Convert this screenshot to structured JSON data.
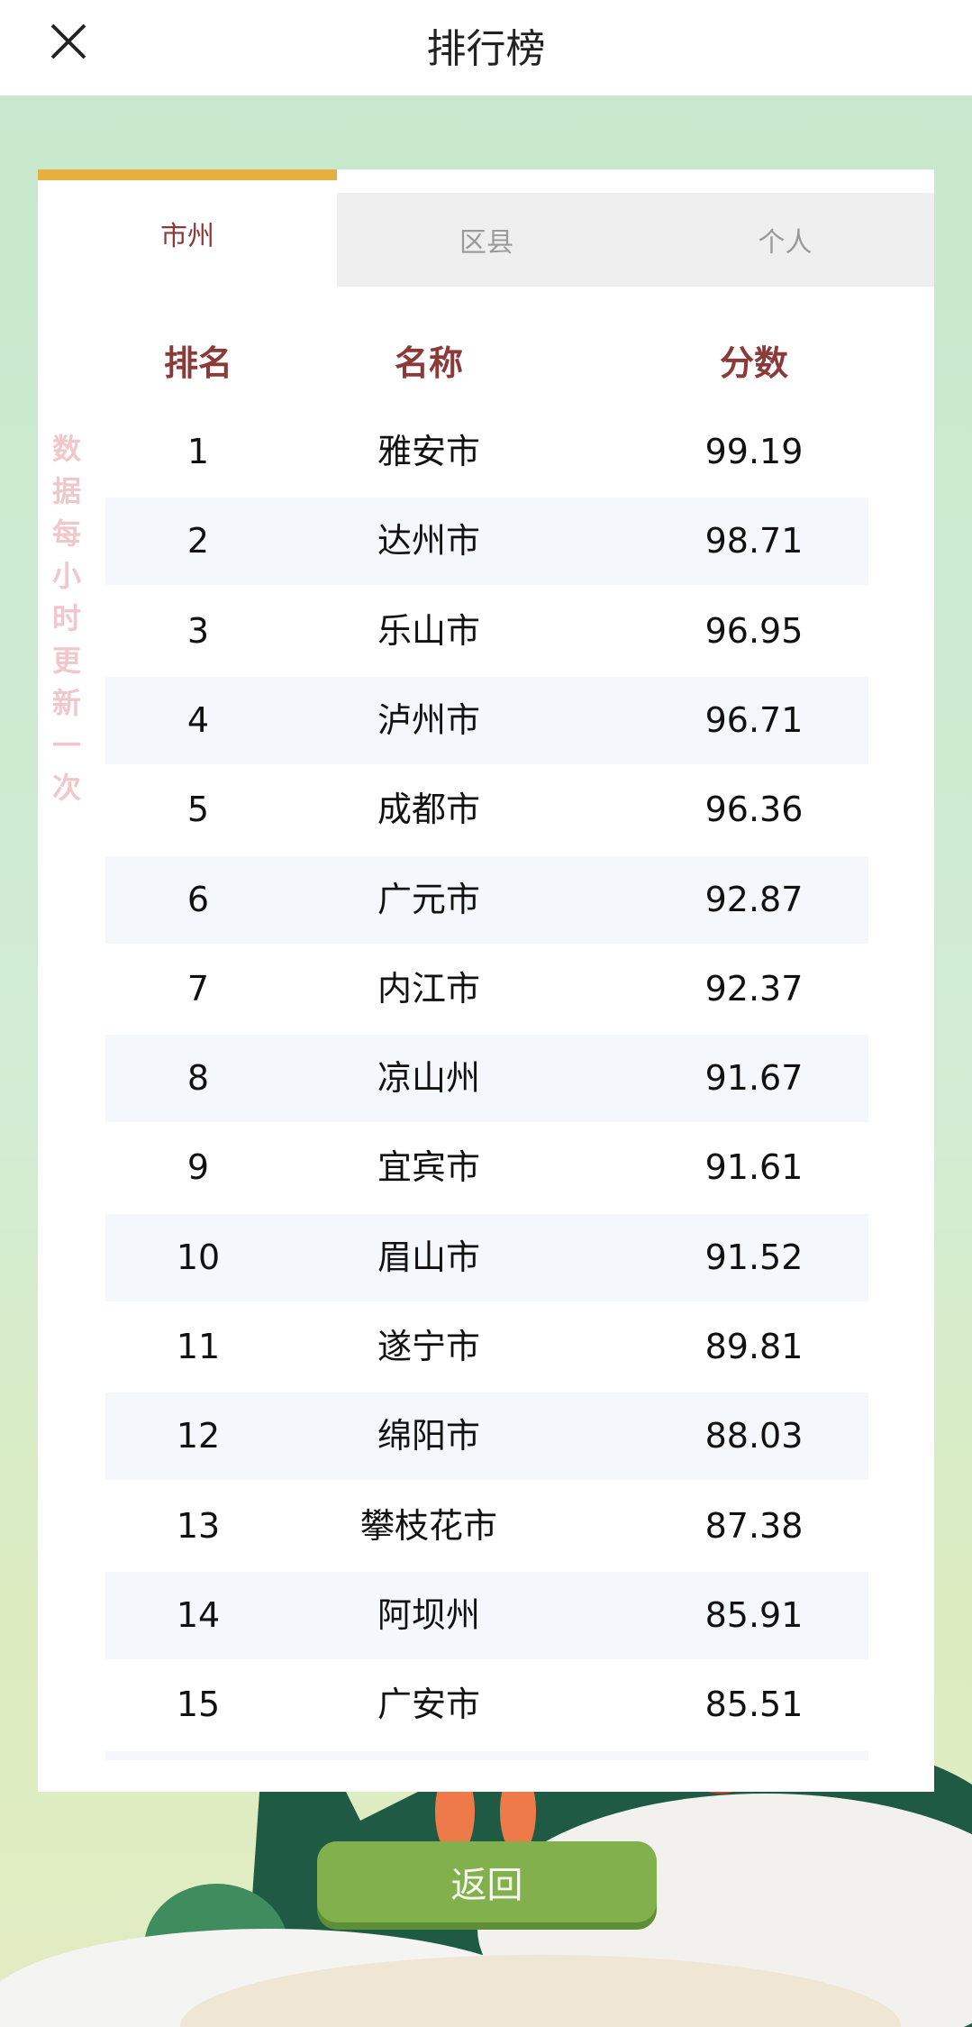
{
  "header": {
    "title": "排行榜",
    "close_icon": "close-icon"
  },
  "tabs": [
    {
      "label": "市州",
      "active": true
    },
    {
      "label": "区县",
      "active": false
    },
    {
      "label": "个人",
      "active": false
    }
  ],
  "side_note": "数据每小时更新一次",
  "columns": {
    "rank": "排名",
    "name": "名称",
    "score": "分数"
  },
  "rows": [
    {
      "rank": "1",
      "name": "雅安市",
      "score": "99.19"
    },
    {
      "rank": "2",
      "name": "达州市",
      "score": "98.71"
    },
    {
      "rank": "3",
      "name": "乐山市",
      "score": "96.95"
    },
    {
      "rank": "4",
      "name": "泸州市",
      "score": "96.71"
    },
    {
      "rank": "5",
      "name": "成都市",
      "score": "96.36"
    },
    {
      "rank": "6",
      "name": "广元市",
      "score": "92.87"
    },
    {
      "rank": "7",
      "name": "内江市",
      "score": "92.37"
    },
    {
      "rank": "8",
      "name": "凉山州",
      "score": "91.67"
    },
    {
      "rank": "9",
      "name": "宜宾市",
      "score": "91.61"
    },
    {
      "rank": "10",
      "name": "眉山市",
      "score": "91.52"
    },
    {
      "rank": "11",
      "name": "遂宁市",
      "score": "89.81"
    },
    {
      "rank": "12",
      "name": "绵阳市",
      "score": "88.03"
    },
    {
      "rank": "13",
      "name": "攀枝花市",
      "score": "87.38"
    },
    {
      "rank": "14",
      "name": "阿坝州",
      "score": "85.91"
    },
    {
      "rank": "15",
      "name": "广安市",
      "score": "85.51"
    }
  ],
  "back_button": "返回",
  "colors": {
    "accent": "#8b3a3a",
    "tab_bar": "#e6b040",
    "button": "#82b04c"
  }
}
